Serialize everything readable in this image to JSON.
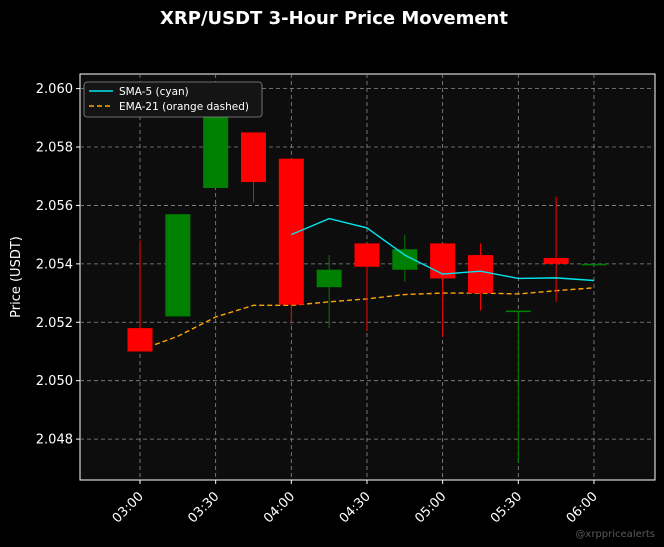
{
  "chart_data": {
    "type": "candlestick",
    "title": "XRP/USDT 3-Hour Price Movement",
    "ylabel": "Price (USDT)",
    "xlabel": "",
    "ylim": [
      2.0466,
      2.0605
    ],
    "yticks": [
      2.048,
      2.05,
      2.052,
      2.054,
      2.056,
      2.058,
      2.06
    ],
    "ytick_labels": [
      "2.048",
      "2.050",
      "2.052",
      "2.054",
      "2.056",
      "2.058",
      "2.060"
    ],
    "xticks": [
      "03:00",
      "03:30",
      "04:00",
      "04:30",
      "05:00",
      "05:30",
      "06:00"
    ],
    "grid": true,
    "legend_position": "top-left",
    "colors": {
      "up": "#008000",
      "down": "#ff0000",
      "sma": "#00e5ee",
      "ema": "#ffa500",
      "plot_bg": "#0d0d0d",
      "grid": "#8c8c8c"
    },
    "candles": [
      {
        "time": "03:00",
        "open": 2.0518,
        "high": 2.0548,
        "low": 2.051,
        "close": 2.051
      },
      {
        "time": "03:15",
        "open": 2.0522,
        "high": 2.0557,
        "low": 2.0522,
        "close": 2.0557
      },
      {
        "time": "03:30",
        "open": 2.0566,
        "high": 2.0601,
        "low": 2.0566,
        "close": 2.0601
      },
      {
        "time": "03:45",
        "open": 2.0585,
        "high": 2.0585,
        "low": 2.0561,
        "close": 2.0568
      },
      {
        "time": "04:00",
        "open": 2.0576,
        "high": 2.0576,
        "low": 2.0519,
        "close": 2.0526
      },
      {
        "time": "04:15",
        "open": 2.0532,
        "high": 2.0543,
        "low": 2.0518,
        "close": 2.0538
      },
      {
        "time": "04:30",
        "open": 2.0547,
        "high": 2.0547,
        "low": 2.0517,
        "close": 2.0539
      },
      {
        "time": "04:45",
        "open": 2.0538,
        "high": 2.055,
        "low": 2.0534,
        "close": 2.0545
      },
      {
        "time": "05:00",
        "open": 2.0547,
        "high": 2.0547,
        "low": 2.0515,
        "close": 2.0535
      },
      {
        "time": "05:15",
        "open": 2.0543,
        "high": 2.0547,
        "low": 2.0524,
        "close": 2.053
      },
      {
        "time": "05:30",
        "open": 2.0524,
        "high": 2.0524,
        "low": 2.0472,
        "close": 2.0524
      },
      {
        "time": "05:45",
        "open": 2.0542,
        "high": 2.0563,
        "low": 2.0527,
        "close": 2.054
      },
      {
        "time": "06:00",
        "open": 2.054,
        "high": 2.054,
        "low": 2.054,
        "close": 2.054
      }
    ],
    "series": [
      {
        "name": "SMA-5 (cyan)",
        "x": [
          "04:00",
          "04:15",
          "04:30",
          "04:45",
          "05:00",
          "05:15",
          "05:30",
          "05:45",
          "06:00"
        ],
        "values": [
          2.055,
          2.05555,
          2.05523,
          2.0543,
          2.05365,
          2.05375,
          2.0535,
          2.05352,
          2.05343
        ]
      },
      {
        "name": "EMA-21 (orange dashed)",
        "x": [
          "03:00",
          "03:15",
          "03:30",
          "03:45",
          "04:00",
          "04:15",
          "04:30",
          "04:45",
          "05:00",
          "05:15",
          "05:30",
          "05:45",
          "06:00"
        ],
        "values": [
          2.05105,
          2.05152,
          2.05218,
          2.05258,
          2.05258,
          2.0527,
          2.0528,
          2.05295,
          2.053,
          2.053,
          2.05297,
          2.05308,
          2.05318
        ]
      }
    ],
    "watermark": "@xrppricealerts"
  }
}
